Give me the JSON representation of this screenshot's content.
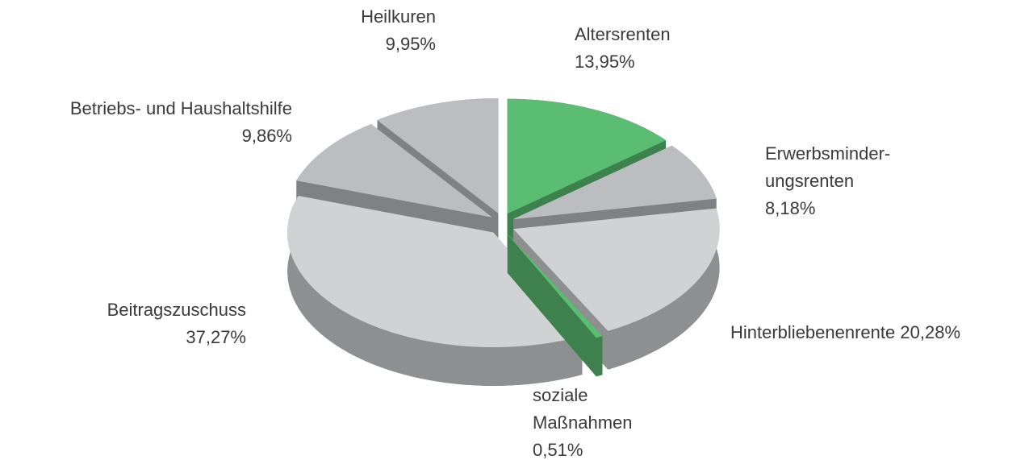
{
  "chart_data": {
    "type": "pie",
    "categories": [
      "Altersrenten",
      "Erwerbsminder-\nungsrenten",
      "Hinterbliebenenrente",
      "soziale\nMaßnahmen",
      "Beitragszuschuss",
      "Betriebs- und Haushaltshilfe",
      "Heilkuren"
    ],
    "values": [
      13.95,
      8.18,
      20.28,
      0.51,
      37.27,
      9.86,
      9.95
    ],
    "value_labels": [
      "13,95%",
      "8,18%",
      "20,28%",
      "0,51%",
      "37,27%",
      "9,86%",
      "9,95%"
    ],
    "colors": [
      "#5bbd72",
      "#bcbdc0",
      "#d1d2d4",
      "#5bbd72",
      "#d1d2d4",
      "#bcbdc0",
      "#bcbdc0"
    ]
  }
}
